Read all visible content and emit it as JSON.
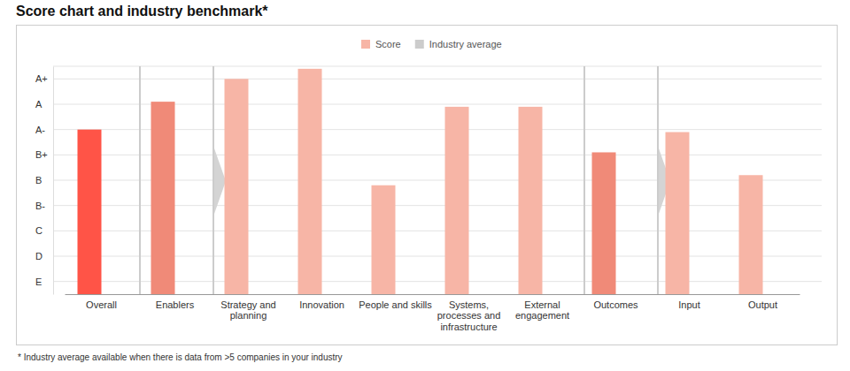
{
  "chart_data": {
    "type": "bar",
    "title": "Score chart and industry benchmark*",
    "categories": [
      "Overall",
      "Enablers",
      "Strategy and planning",
      "Innovation",
      "People and skills",
      "Systems, processes and infrastructure",
      "External engagement",
      "Outcomes",
      "Input",
      "Output"
    ],
    "series": [
      {
        "name": "Score",
        "color": "#f7b5a6",
        "colors": [
          "#ff5447",
          "#f08a78",
          "#f7b5a6",
          "#f7b5a6",
          "#f7b5a6",
          "#f7b5a6",
          "#f7b5a6",
          "#f08a78",
          "#f7b5a6",
          "#f7b5a6"
        ],
        "values": [
          7.0,
          8.1,
          9.0,
          9.4,
          4.8,
          7.9,
          7.9,
          6.1,
          6.9,
          5.2
        ]
      },
      {
        "name": "Industry average",
        "color": "#cccccc",
        "values": [
          null,
          null,
          null,
          null,
          null,
          null,
          null,
          null,
          null,
          null
        ]
      }
    ],
    "ylim": [
      0.5,
      9.5
    ],
    "yticks": [
      {
        "value": 1,
        "label": "E"
      },
      {
        "value": 2,
        "label": "D"
      },
      {
        "value": 3,
        "label": "C"
      },
      {
        "value": 4,
        "label": "B-"
      },
      {
        "value": 5,
        "label": "B"
      },
      {
        "value": 6,
        "label": "B+"
      },
      {
        "value": 7,
        "label": "A-"
      },
      {
        "value": 8,
        "label": "A"
      },
      {
        "value": 9,
        "label": "A+"
      }
    ],
    "grid": true,
    "legend": "top",
    "annotations": [
      "* Industry average available when there is data from >5 companies in your industry"
    ]
  }
}
